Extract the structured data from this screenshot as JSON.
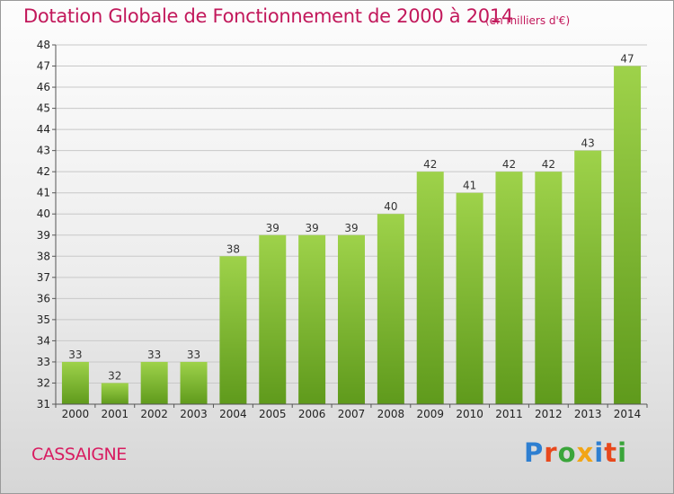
{
  "title": "Dotation Globale de Fonctionnement de 2000 à 2014",
  "unit_note": "(en milliers d'€)",
  "commune": "CASSAIGNE",
  "logo": {
    "letters": [
      "P",
      "r",
      "o",
      "x",
      "i",
      "t",
      "i"
    ],
    "colors": [
      "#2e7fd1",
      "#e8481c",
      "#3aa53a",
      "#f2a516",
      "#2e7fd1",
      "#e8481c",
      "#3aa53a"
    ]
  },
  "colors": {
    "bar_top": "#9ed24a",
    "bar_bottom": "#5f9a1c",
    "title": "#c2185b"
  },
  "chart_data": {
    "type": "bar",
    "title": "Dotation Globale de Fonctionnement de 2000 à 2014",
    "categories": [
      "2000",
      "2001",
      "2002",
      "2003",
      "2004",
      "2005",
      "2006",
      "2007",
      "2008",
      "2009",
      "2010",
      "2011",
      "2012",
      "2013",
      "2014"
    ],
    "values": [
      33,
      32,
      33,
      33,
      38,
      39,
      39,
      39,
      40,
      42,
      41,
      42,
      42,
      43,
      47
    ],
    "ylim": [
      31,
      48
    ],
    "yticks": [
      31,
      32,
      33,
      34,
      35,
      36,
      37,
      38,
      39,
      40,
      41,
      42,
      43,
      44,
      45,
      46,
      47,
      48
    ],
    "xlabel": "",
    "ylabel": "",
    "grid": true,
    "legend": "none"
  }
}
